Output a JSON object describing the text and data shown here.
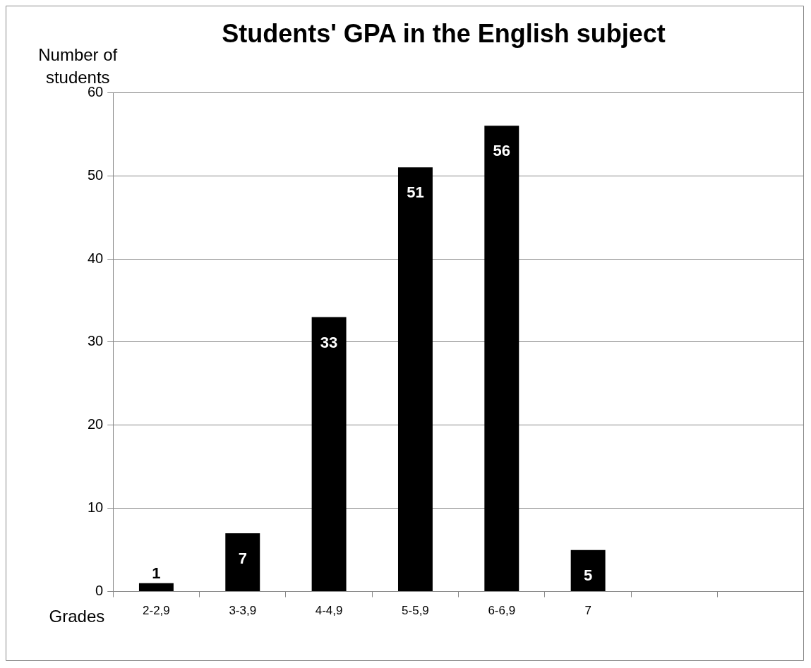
{
  "chart_data": {
    "type": "bar",
    "title": "Students' GPA in the English subject",
    "xlabel": "Grades",
    "ylabel": "Number of students",
    "categories": [
      "2-2,9",
      "3-3,9",
      "4-4,9",
      "5-5,9",
      "6-6,9",
      "7",
      null,
      null
    ],
    "values": [
      1,
      7,
      33,
      51,
      56,
      5,
      null,
      null
    ],
    "color": "#000000",
    "ylim": [
      0,
      60
    ],
    "yticks": [
      0,
      10,
      20,
      30,
      40,
      50,
      60
    ],
    "grid": "y",
    "legend": false,
    "data_labels": true
  }
}
